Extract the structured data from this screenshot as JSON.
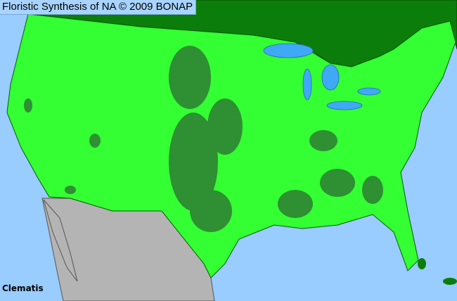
{
  "title": "Floristic Synthesis of NA © 2009 BONAP",
  "taxon": "Clematis",
  "colors": {
    "ocean": "#99ccff",
    "canada": "#0b7d0b",
    "present": "#33ff33",
    "native_dark": "#2e7d32",
    "mexico": "#b4b4b4",
    "lakes": "#3fa9f5"
  }
}
